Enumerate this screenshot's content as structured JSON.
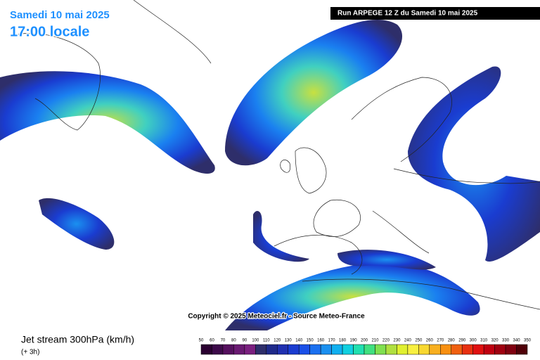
{
  "header": {
    "date": "Samedi 10 mai 2025",
    "time": "17:00 locale",
    "run": "Run ARPEGE 12 Z du Samedi 10 mai 2025"
  },
  "copyright": "Copyright © 2025 Meteociel.fr - Source Meteo-France",
  "footer": {
    "title": "Jet stream 300hPa (km/h)",
    "lead": "(+ 3h)"
  },
  "legend": {
    "levels": [
      50,
      60,
      70,
      80,
      90,
      100,
      110,
      120,
      130,
      140,
      150,
      160,
      170,
      180,
      190,
      200,
      210,
      220,
      230,
      240,
      250,
      260,
      270,
      280,
      290,
      300,
      310,
      320,
      330,
      340,
      350
    ],
    "colors": [
      "#2a0030",
      "#3d0a4a",
      "#55105e",
      "#6a1a72",
      "#7b2080",
      "#2e2e6a",
      "#1f2a8a",
      "#2030b0",
      "#1a3cd0",
      "#1a50e8",
      "#1a70f0",
      "#1a90f0",
      "#10b0f0",
      "#10d0e0",
      "#20e0b0",
      "#40e080",
      "#80e050",
      "#b0e040",
      "#e0f030",
      "#f8f040",
      "#f8d830",
      "#f8b020",
      "#f89010",
      "#f06010",
      "#e83010",
      "#e01010",
      "#c00010",
      "#a00010",
      "#800010",
      "#500008"
    ]
  }
}
